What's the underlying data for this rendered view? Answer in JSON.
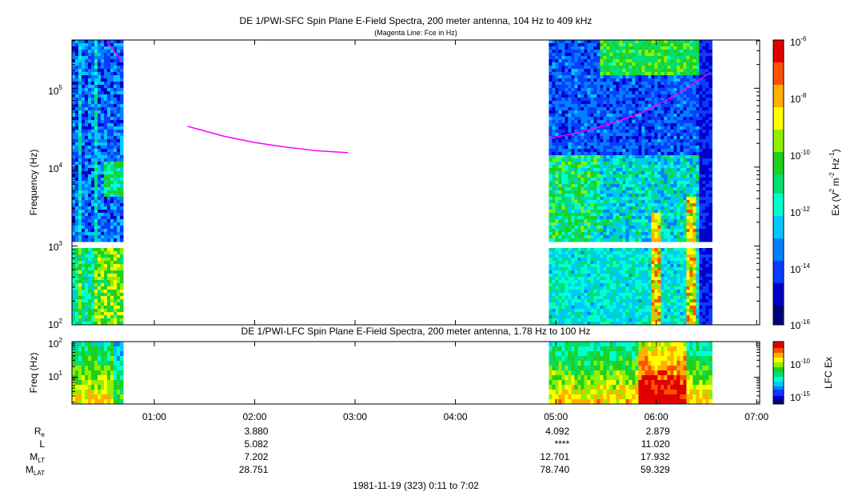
{
  "colors": {
    "fce_line": "#ff00ff",
    "colormap": [
      "#00007a",
      "#0000c8",
      "#0a3cff",
      "#0080ff",
      "#00c8ff",
      "#00ffd0",
      "#00e070",
      "#20d020",
      "#90f000",
      "#ffff00",
      "#ffb000",
      "#ff5000",
      "#e00000"
    ]
  },
  "chart_data": [
    {
      "panel": "sfc",
      "type": "heatmap",
      "title": "DE 1/PWI-SFC  Spin Plane E-Field Spectra, 200 meter antenna, 104 Hz to 409 kHz",
      "subtitle": "(Magenta Line: Fce in Hz)",
      "ylabel": "Frequency (Hz)",
      "y_scale": "log",
      "ylim": [
        100,
        409000
      ],
      "y_tick_labels": [
        "10^2",
        "10^3",
        "10^4",
        "10^5"
      ],
      "x_range_hours": [
        0.18,
        7.03
      ],
      "data_intervals_hours": [
        [
          0.18,
          0.68
        ],
        [
          4.93,
          6.53
        ]
      ],
      "colorbar": {
        "label": "Ex (V^2 m^-2 Hz^-1)",
        "scale": "log",
        "range": [
          1e-16,
          1e-06
        ],
        "tick_labels": [
          "10^-6",
          "10^-8",
          "10^-10",
          "10^-12",
          "10^-14",
          "10^-16"
        ]
      },
      "fce_line": {
        "name": "Fce",
        "segments": [
          {
            "x": [
              0.53,
              0.6,
              0.68
            ],
            "y": [
              390000,
              300000,
              215000
            ]
          },
          {
            "x": [
              1.33,
              1.7,
              2.0,
              2.3,
              2.6,
              2.93
            ],
            "y": [
              33000,
              24500,
              20500,
              18000,
              16200,
              15200
            ]
          },
          {
            "x": [
              4.93,
              5.2,
              5.5,
              5.8,
              6.1,
              6.3,
              6.53
            ],
            "y": [
              23000,
              27000,
              34000,
              46000,
              70000,
              100000,
              155000
            ]
          }
        ]
      }
    },
    {
      "panel": "lfc",
      "type": "heatmap",
      "title": "DE 1/PWI-LFC  Spin Plane E-Field Spectra, 200 meter antenna, 1.78 Hz to 100 Hz",
      "ylabel": "Freq (Hz)",
      "y_scale": "log",
      "ylim": [
        1.78,
        100
      ],
      "y_tick_labels": [
        "10^1",
        "10^2"
      ],
      "colorbar": {
        "label": "LFC Ex",
        "scale": "log",
        "tick_labels": [
          "10^-10",
          "10^-15"
        ]
      },
      "x_ticks": [
        "01:00",
        "02:00",
        "03:00",
        "04:00",
        "05:00",
        "06:00",
        "07:00"
      ]
    }
  ],
  "ephemeris": {
    "rows": [
      {
        "label": "R",
        "sub": "e",
        "values": [
          "3.880",
          "4.092",
          "2.879"
        ]
      },
      {
        "label": "L",
        "sub": "",
        "values": [
          "5.082",
          "****",
          "11.020"
        ]
      },
      {
        "label": "M",
        "sub": "LT",
        "values": [
          "7.202",
          "12.701",
          "17.932"
        ]
      },
      {
        "label": "M",
        "sub": "LAT",
        "values": [
          "28.751",
          "78.740",
          "59.329"
        ]
      }
    ],
    "time_hours": [
      2.0,
      5.0,
      6.0
    ],
    "footer": "1981-11-19 (323) 0:11 to 7:02"
  }
}
